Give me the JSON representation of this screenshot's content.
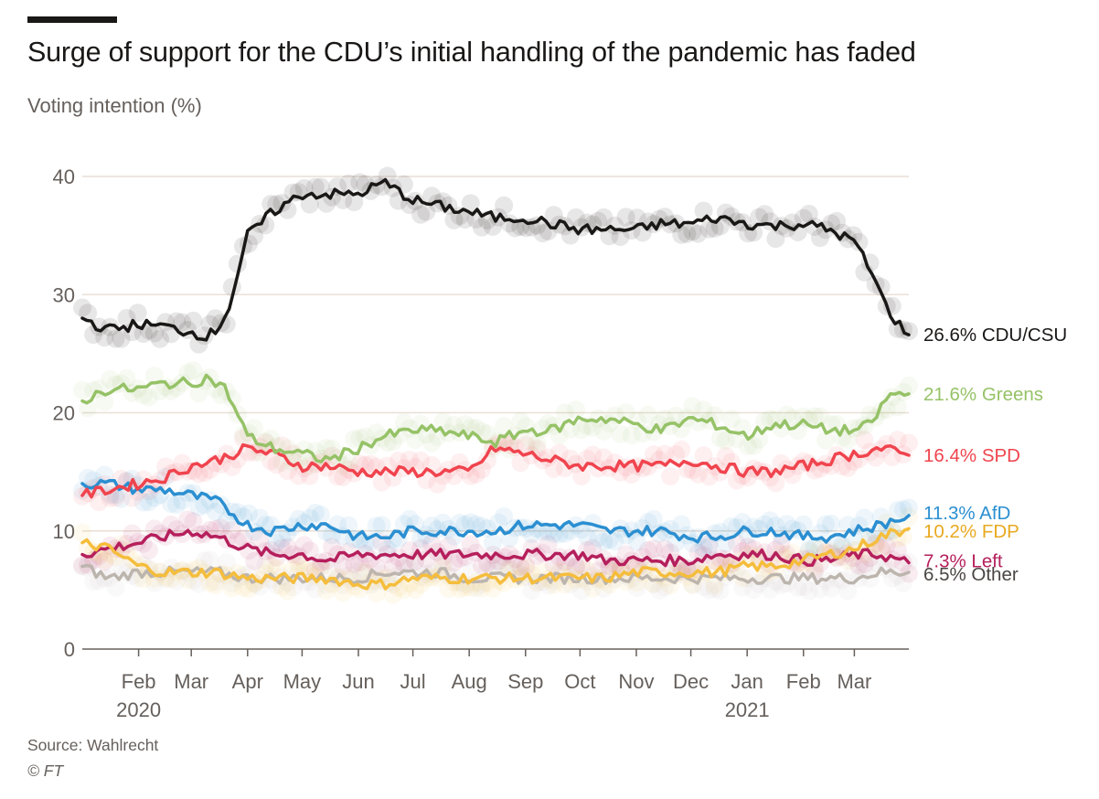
{
  "header": {
    "title": "Surge of support for the CDU’s initial handling of the pandemic has faded",
    "subtitle": "Voting intention (%)"
  },
  "footer": {
    "source": "Source: Wahlrecht",
    "copyright": "© FT"
  },
  "colors": {
    "CDU/CSU": "#1a1817",
    "Greens": "#96c267",
    "SPD": "#f0444e",
    "AfD": "#2b8fd1",
    "FDP": "#f5bd3c",
    "Left": "#b51f5c",
    "Other": "#bcb5ae",
    "grid": "#e9dfd6",
    "axis_text": "#66605c"
  },
  "chart_data": {
    "type": "line",
    "title": "Surge of support for the CDU’s initial handling of the pandemic has faded",
    "ylabel": "Voting intention (%)",
    "xlabel": "",
    "ylim": [
      0,
      40
    ],
    "xlim": [
      "2020-01-01",
      "2021-03-31"
    ],
    "y_ticks": [
      0,
      10,
      20,
      30,
      40
    ],
    "x_ticks": [
      {
        "label": "Feb",
        "date": "2020-02-01",
        "year": "2020"
      },
      {
        "label": "Mar",
        "date": "2020-03-01"
      },
      {
        "label": "Apr",
        "date": "2020-04-01"
      },
      {
        "label": "May",
        "date": "2020-05-01"
      },
      {
        "label": "Jun",
        "date": "2020-06-01"
      },
      {
        "label": "Jul",
        "date": "2020-07-01"
      },
      {
        "label": "Aug",
        "date": "2020-08-01"
      },
      {
        "label": "Sep",
        "date": "2020-09-01"
      },
      {
        "label": "Oct",
        "date": "2020-10-01"
      },
      {
        "label": "Nov",
        "date": "2020-11-01"
      },
      {
        "label": "Dec",
        "date": "2020-12-01"
      },
      {
        "label": "Jan",
        "date": "2021-01-01",
        "year": "2021"
      },
      {
        "label": "Feb",
        "date": "2021-02-01"
      },
      {
        "label": "Mar",
        "date": "2021-03-01"
      }
    ],
    "grid": "horizontal",
    "legend": "inline labels at line ends",
    "series": [
      {
        "name": "CDU/CSU",
        "end_label": "26.6% CDU/CSU",
        "color": "#1a1817",
        "x": [
          "2020-01-01",
          "2020-01-15",
          "2020-02-01",
          "2020-02-15",
          "2020-03-01",
          "2020-03-10",
          "2020-03-15",
          "2020-03-22",
          "2020-04-01",
          "2020-04-15",
          "2020-05-01",
          "2020-05-15",
          "2020-06-01",
          "2020-06-15",
          "2020-07-01",
          "2020-07-15",
          "2020-08-01",
          "2020-08-15",
          "2020-09-01",
          "2020-09-15",
          "2020-10-01",
          "2020-10-15",
          "2020-11-01",
          "2020-11-15",
          "2020-12-01",
          "2020-12-15",
          "2021-01-01",
          "2021-01-15",
          "2021-02-01",
          "2021-02-15",
          "2021-03-01",
          "2021-03-10",
          "2021-03-20",
          "2021-03-31"
        ],
        "y": [
          28,
          27,
          27.5,
          27.3,
          26.8,
          26.5,
          27,
          29,
          35,
          37,
          38.5,
          38.5,
          38.5,
          39.5,
          38,
          37.5,
          37,
          36.5,
          36.5,
          36,
          35.5,
          35.5,
          35.5,
          36,
          36,
          36.5,
          36,
          35.8,
          36,
          35.5,
          34.5,
          32,
          28.5,
          26.6
        ]
      },
      {
        "name": "Greens",
        "end_label": "21.6% Greens",
        "color": "#96c267",
        "x": [
          "2020-01-01",
          "2020-01-15",
          "2020-02-01",
          "2020-02-15",
          "2020-03-01",
          "2020-03-10",
          "2020-03-20",
          "2020-04-01",
          "2020-04-15",
          "2020-05-01",
          "2020-05-15",
          "2020-06-01",
          "2020-06-15",
          "2020-07-01",
          "2020-07-15",
          "2020-08-01",
          "2020-08-15",
          "2020-09-01",
          "2020-09-15",
          "2020-10-01",
          "2020-10-15",
          "2020-11-01",
          "2020-11-15",
          "2020-12-01",
          "2020-12-15",
          "2021-01-01",
          "2021-01-15",
          "2021-02-01",
          "2021-02-15",
          "2021-03-01",
          "2021-03-10",
          "2021-03-20",
          "2021-03-31"
        ],
        "y": [
          21,
          22,
          22,
          22.5,
          22.5,
          23,
          22,
          18,
          17,
          16.5,
          16,
          17,
          18,
          18.5,
          18.5,
          18,
          17.5,
          18.5,
          18.5,
          19.5,
          19.5,
          19,
          18.5,
          19.5,
          19,
          18,
          19,
          19,
          18.5,
          18.5,
          19,
          21.5,
          21.6
        ]
      },
      {
        "name": "SPD",
        "end_label": "16.4% SPD",
        "color": "#f0444e",
        "x": [
          "2020-01-01",
          "2020-01-15",
          "2020-02-01",
          "2020-02-15",
          "2020-03-01",
          "2020-03-15",
          "2020-04-01",
          "2020-04-15",
          "2020-05-01",
          "2020-05-15",
          "2020-06-01",
          "2020-06-15",
          "2020-07-01",
          "2020-07-15",
          "2020-08-01",
          "2020-08-15",
          "2020-09-01",
          "2020-09-15",
          "2020-10-01",
          "2020-10-15",
          "2020-11-01",
          "2020-11-15",
          "2020-12-01",
          "2020-12-15",
          "2021-01-01",
          "2021-01-15",
          "2021-02-01",
          "2021-02-15",
          "2021-03-01",
          "2021-03-15",
          "2021-03-31"
        ],
        "y": [
          13,
          13.5,
          14,
          14.5,
          15.5,
          16,
          17,
          16.5,
          15.5,
          15.5,
          15,
          15,
          15,
          15,
          15,
          17,
          16.5,
          16,
          15.5,
          15.5,
          15.5,
          15.5,
          16,
          15.5,
          15,
          15,
          15.5,
          16,
          16.5,
          17,
          16.4
        ]
      },
      {
        "name": "AfD",
        "end_label": "11.3% AfD",
        "color": "#2b8fd1",
        "x": [
          "2020-01-01",
          "2020-01-15",
          "2020-02-01",
          "2020-02-15",
          "2020-03-01",
          "2020-03-15",
          "2020-04-01",
          "2020-04-15",
          "2020-05-01",
          "2020-05-15",
          "2020-06-01",
          "2020-06-15",
          "2020-07-01",
          "2020-07-15",
          "2020-08-01",
          "2020-08-15",
          "2020-09-01",
          "2020-09-15",
          "2020-10-01",
          "2020-10-15",
          "2020-11-01",
          "2020-11-15",
          "2020-12-01",
          "2020-12-15",
          "2021-01-01",
          "2021-01-15",
          "2021-02-01",
          "2021-02-15",
          "2021-03-01",
          "2021-03-15",
          "2021-03-31"
        ],
        "y": [
          14,
          14,
          13.5,
          13.5,
          13,
          12.5,
          10.5,
          10,
          10.5,
          10.5,
          9.5,
          9.5,
          10,
          10,
          10,
          10,
          10.5,
          10.5,
          10.5,
          10,
          10,
          10,
          9.5,
          9.5,
          10,
          10,
          9.5,
          9.5,
          10,
          10.5,
          11.3
        ]
      },
      {
        "name": "FDP",
        "end_label": "10.2% FDP",
        "color": "#f5bd3c",
        "x": [
          "2020-01-01",
          "2020-01-15",
          "2020-02-01",
          "2020-02-15",
          "2020-03-01",
          "2020-03-15",
          "2020-04-01",
          "2020-04-15",
          "2020-05-01",
          "2020-05-15",
          "2020-06-01",
          "2020-06-15",
          "2020-07-01",
          "2020-07-15",
          "2020-08-01",
          "2020-08-15",
          "2020-09-01",
          "2020-09-15",
          "2020-10-01",
          "2020-10-15",
          "2020-11-01",
          "2020-11-15",
          "2020-12-01",
          "2020-12-15",
          "2021-01-01",
          "2021-01-15",
          "2021-02-01",
          "2021-02-15",
          "2021-03-01",
          "2021-03-15",
          "2021-03-31"
        ],
        "y": [
          9,
          8.5,
          7,
          6.5,
          6.5,
          6.5,
          6,
          6,
          6,
          6,
          5.5,
          5.5,
          6,
          6,
          6,
          6,
          6,
          6,
          6,
          6,
          6.5,
          6.5,
          6.5,
          6.5,
          7,
          7,
          7.5,
          8,
          8.5,
          9.5,
          10.2
        ]
      },
      {
        "name": "Left",
        "end_label": "7.3% Left",
        "color": "#b51f5c",
        "x": [
          "2020-01-01",
          "2020-01-15",
          "2020-02-01",
          "2020-02-15",
          "2020-03-01",
          "2020-03-15",
          "2020-04-01",
          "2020-04-15",
          "2020-05-01",
          "2020-05-15",
          "2020-06-01",
          "2020-06-15",
          "2020-07-01",
          "2020-07-15",
          "2020-08-01",
          "2020-08-15",
          "2020-09-01",
          "2020-09-15",
          "2020-10-01",
          "2020-10-15",
          "2020-11-01",
          "2020-11-15",
          "2020-12-01",
          "2020-12-15",
          "2021-01-01",
          "2021-01-15",
          "2021-02-01",
          "2021-02-15",
          "2021-03-01",
          "2021-03-15",
          "2021-03-31"
        ],
        "y": [
          8,
          8.5,
          9,
          9.5,
          10,
          9.5,
          8.5,
          8,
          8,
          7.5,
          8,
          8,
          8,
          8,
          8,
          8,
          8,
          8,
          8,
          7.5,
          7.5,
          7.5,
          7.5,
          8,
          8,
          8,
          7.5,
          7.5,
          8,
          8,
          7.3
        ]
      },
      {
        "name": "Other",
        "end_label": "6.5% Other",
        "color": "#bcb5ae",
        "x": [
          "2020-01-01",
          "2020-01-15",
          "2020-02-01",
          "2020-02-15",
          "2020-03-01",
          "2020-03-15",
          "2020-04-01",
          "2020-04-15",
          "2020-05-01",
          "2020-05-15",
          "2020-06-01",
          "2020-06-15",
          "2020-07-01",
          "2020-07-15",
          "2020-08-01",
          "2020-08-15",
          "2020-09-01",
          "2020-09-15",
          "2020-10-01",
          "2020-10-15",
          "2020-11-01",
          "2020-11-15",
          "2020-12-01",
          "2020-12-15",
          "2021-01-01",
          "2021-01-15",
          "2021-02-01",
          "2021-02-15",
          "2021-03-01",
          "2021-03-15",
          "2021-03-31"
        ],
        "y": [
          7,
          6,
          6.5,
          6.5,
          6.5,
          6.5,
          6,
          6,
          6,
          6,
          6,
          6.5,
          6.5,
          6.5,
          6,
          6,
          6,
          6,
          6,
          6,
          6,
          6,
          6,
          6,
          6,
          6,
          6,
          6,
          6,
          6.5,
          6.5
        ]
      }
    ]
  }
}
